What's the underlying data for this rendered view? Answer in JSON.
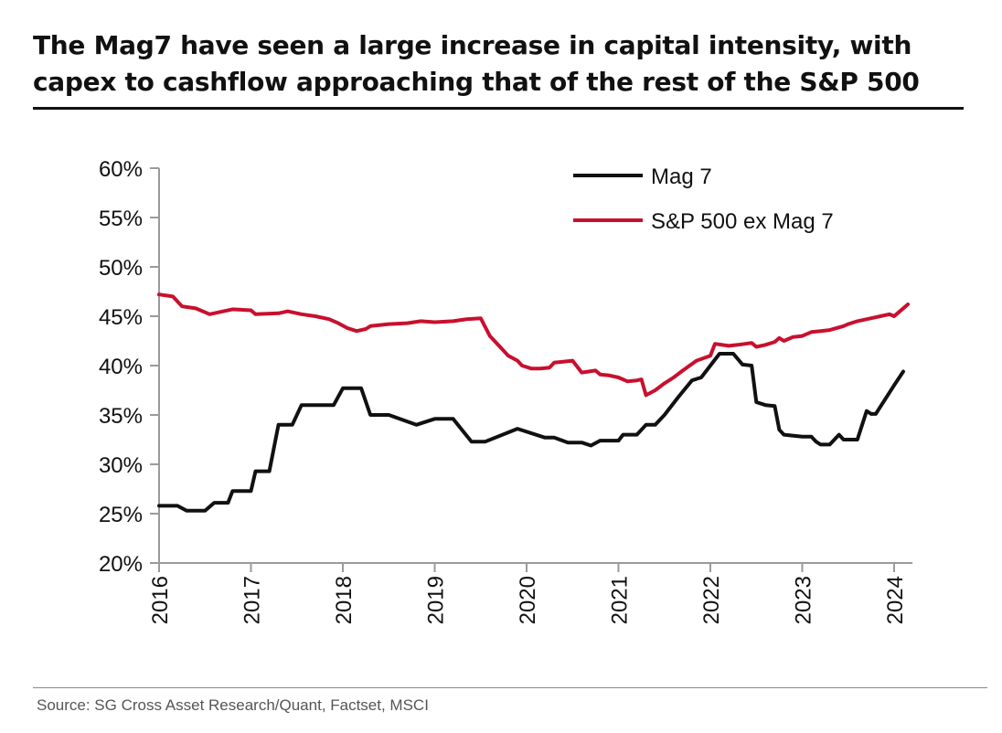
{
  "title": "The Mag7 have seen a large increase in capital intensity, with capex to cashflow approaching that of the rest of the S&P 500",
  "source": "Source: SG Cross Asset Research/Quant, Factset, MSCI",
  "chart_data": {
    "type": "line",
    "title": "The Mag7 have seen a large increase in capital intensity, with capex to cashflow approaching that of the rest of the S&P 500",
    "xlabel": "",
    "ylabel": "",
    "xlim": [
      2016,
      2024.2
    ],
    "ylim": [
      20,
      60
    ],
    "y_ticks": [
      20,
      25,
      30,
      35,
      40,
      45,
      50,
      55,
      60
    ],
    "y_tick_labels": [
      "20%",
      "25%",
      "30%",
      "35%",
      "40%",
      "45%",
      "50%",
      "55%",
      "60%"
    ],
    "x_ticks": [
      2016,
      2017,
      2018,
      2019,
      2020,
      2021,
      2022,
      2023,
      2024
    ],
    "x_tick_labels": [
      "2016",
      "2017",
      "2018",
      "2019",
      "2020",
      "2021",
      "2022",
      "2023",
      "2024"
    ],
    "grid": false,
    "legend_position": "top-right",
    "series": [
      {
        "name": "Mag 7",
        "color": "#111111",
        "x": [
          2016.0,
          2016.2,
          2016.3,
          2016.5,
          2016.6,
          2016.75,
          2016.8,
          2017.0,
          2017.05,
          2017.2,
          2017.3,
          2017.45,
          2017.55,
          2017.8,
          2017.9,
          2018.0,
          2018.2,
          2018.3,
          2018.5,
          2018.8,
          2019.0,
          2019.2,
          2019.4,
          2019.55,
          2019.9,
          2020.2,
          2020.3,
          2020.45,
          2020.6,
          2020.7,
          2020.8,
          2021.0,
          2021.05,
          2021.2,
          2021.3,
          2021.4,
          2021.5,
          2021.65,
          2021.8,
          2021.9,
          2022.05,
          2022.1,
          2022.25,
          2022.35,
          2022.45,
          2022.5,
          2022.6,
          2022.7,
          2022.75,
          2022.8,
          2023.0,
          2023.1,
          2023.15,
          2023.2,
          2023.3,
          2023.4,
          2023.45,
          2023.6,
          2023.7,
          2023.75,
          2023.8,
          2024.0,
          2024.1
        ],
        "values": [
          25.8,
          25.8,
          25.3,
          25.3,
          26.1,
          26.1,
          27.3,
          27.3,
          29.3,
          29.3,
          34.0,
          34.0,
          36.0,
          36.0,
          36.0,
          37.7,
          37.7,
          35.0,
          35.0,
          34.0,
          34.6,
          34.6,
          32.3,
          32.3,
          33.6,
          32.7,
          32.7,
          32.2,
          32.2,
          31.9,
          32.4,
          32.4,
          33.0,
          33.0,
          34.0,
          34.0,
          35.0,
          36.8,
          38.5,
          38.8,
          40.6,
          41.2,
          41.2,
          40.1,
          40.0,
          36.3,
          36.0,
          35.9,
          33.5,
          33.0,
          32.8,
          32.8,
          32.3,
          32.0,
          32.0,
          33.0,
          32.5,
          32.5,
          35.4,
          35.1,
          35.1,
          38.0,
          39.4
        ]
      },
      {
        "name": "S&P 500 ex Mag 7",
        "color": "#c8102e",
        "x": [
          2016.0,
          2016.15,
          2016.25,
          2016.4,
          2016.55,
          2016.7,
          2016.8,
          2017.0,
          2017.05,
          2017.3,
          2017.4,
          2017.55,
          2017.7,
          2017.85,
          2017.95,
          2018.05,
          2018.15,
          2018.25,
          2018.3,
          2018.5,
          2018.7,
          2018.85,
          2019.0,
          2019.2,
          2019.35,
          2019.5,
          2019.6,
          2019.7,
          2019.8,
          2019.9,
          2019.95,
          2020.05,
          2020.15,
          2020.25,
          2020.3,
          2020.4,
          2020.5,
          2020.6,
          2020.75,
          2020.8,
          2020.9,
          2021.0,
          2021.1,
          2021.2,
          2021.25,
          2021.3,
          2021.4,
          2021.5,
          2021.6,
          2021.7,
          2021.85,
          2022.0,
          2022.05,
          2022.2,
          2022.3,
          2022.45,
          2022.5,
          2022.6,
          2022.7,
          2022.75,
          2022.8,
          2022.9,
          2023.0,
          2023.1,
          2023.2,
          2023.3,
          2023.45,
          2023.5,
          2023.6,
          2023.75,
          2023.85,
          2023.95,
          2024.0,
          2024.05,
          2024.15
        ],
        "values": [
          47.2,
          47.0,
          46.0,
          45.8,
          45.2,
          45.5,
          45.7,
          45.6,
          45.2,
          45.3,
          45.5,
          45.2,
          45.0,
          44.7,
          44.3,
          43.8,
          43.5,
          43.7,
          44.0,
          44.2,
          44.3,
          44.5,
          44.4,
          44.5,
          44.7,
          44.8,
          43.0,
          42.0,
          41.0,
          40.5,
          40.0,
          39.7,
          39.7,
          39.8,
          40.3,
          40.4,
          40.5,
          39.3,
          39.5,
          39.1,
          39.0,
          38.8,
          38.4,
          38.5,
          38.6,
          37.0,
          37.5,
          38.2,
          38.8,
          39.5,
          40.5,
          41.0,
          42.2,
          42.0,
          42.1,
          42.3,
          41.9,
          42.1,
          42.4,
          42.8,
          42.5,
          42.9,
          43.0,
          43.4,
          43.5,
          43.6,
          44.0,
          44.2,
          44.5,
          44.8,
          45.0,
          45.2,
          45.0,
          45.4,
          46.2
        ]
      }
    ]
  }
}
